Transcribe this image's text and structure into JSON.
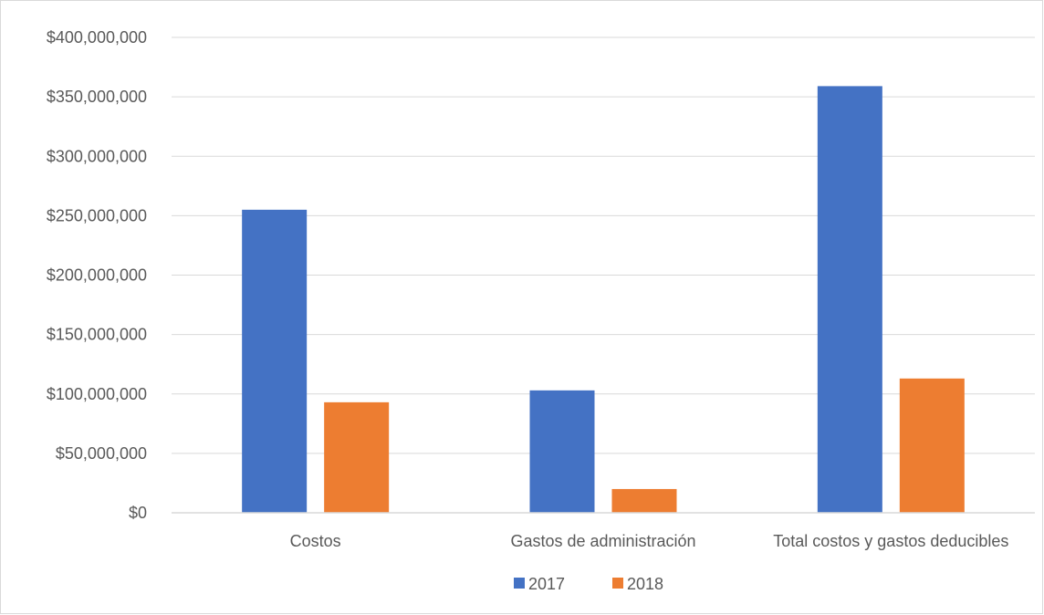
{
  "chart_data": {
    "type": "bar",
    "categories": [
      "Costos",
      "Gastos de administración",
      "Total costos y gastos deducibles"
    ],
    "series": [
      {
        "name": "2017",
        "color": "#4472c4",
        "values": [
          255000000,
          103000000,
          359000000
        ]
      },
      {
        "name": "2018",
        "color": "#ed7d31",
        "values": [
          93000000,
          20000000,
          113000000
        ]
      }
    ],
    "y_ticks": [
      "$0",
      "$50,000,000",
      "$100,000,000",
      "$150,000,000",
      "$200,000,000",
      "$250,000,000",
      "$300,000,000",
      "$350,000,000",
      "$400,000,000"
    ],
    "ylim": [
      0,
      400000000
    ],
    "grid": true,
    "legend_position": "bottom",
    "title": "",
    "xlabel": "",
    "ylabel": ""
  }
}
